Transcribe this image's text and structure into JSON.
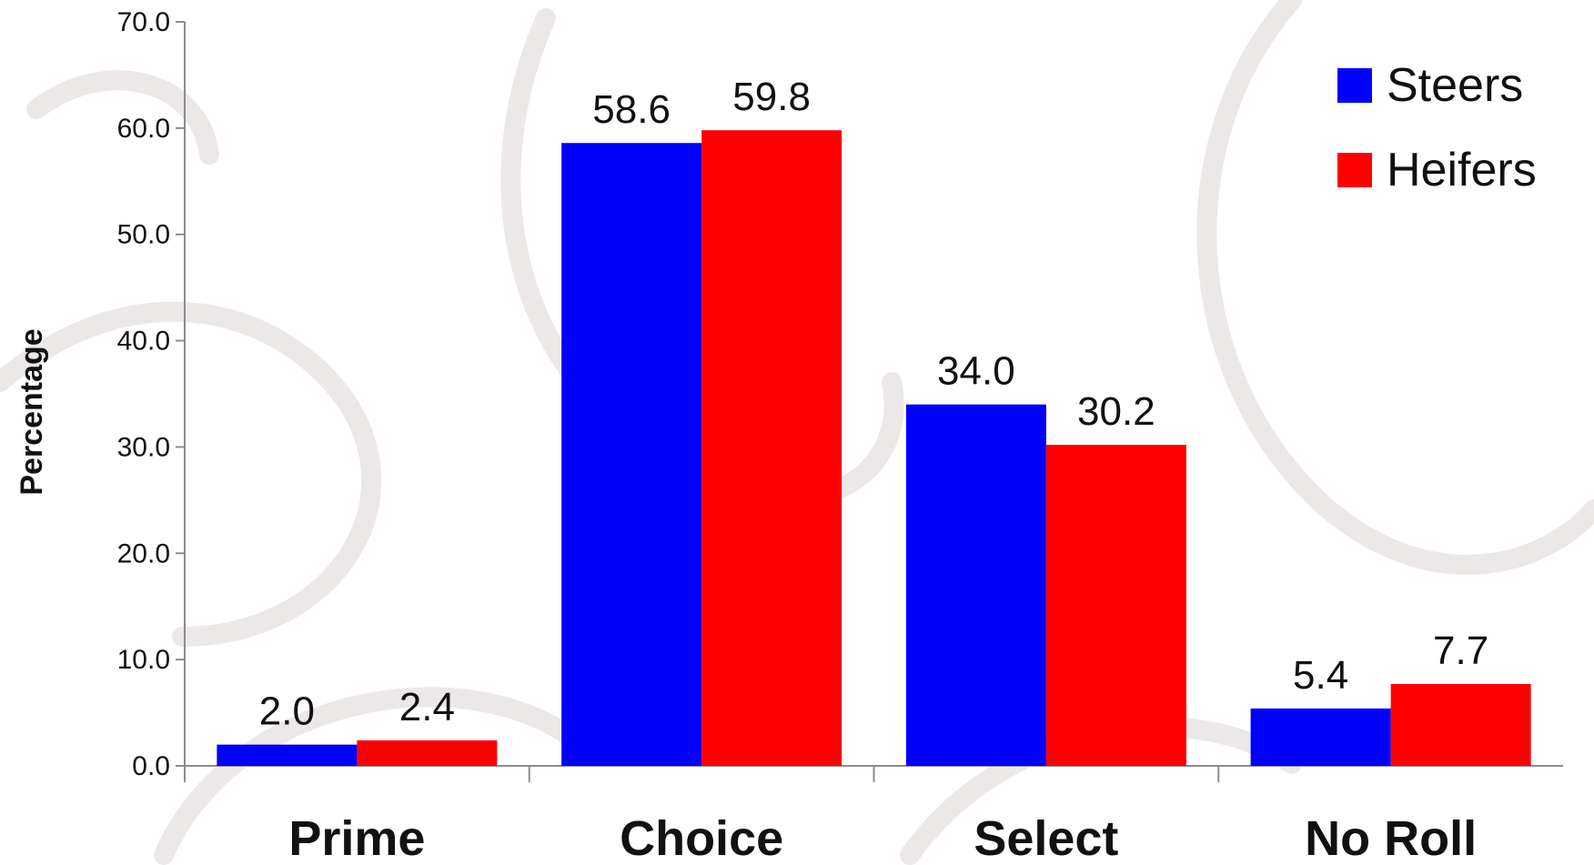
{
  "chart_data": {
    "type": "bar",
    "title": "",
    "xlabel": "",
    "ylabel": "Percentage",
    "categories": [
      "Prime",
      "Choice",
      "Select",
      "No Roll"
    ],
    "series": [
      {
        "name": "Steers",
        "color": "#0000ff",
        "values": [
          2.0,
          58.6,
          34.0,
          5.4
        ],
        "labels": [
          "2.0",
          "58.6",
          "34.0",
          "5.4"
        ]
      },
      {
        "name": "Heifers",
        "color": "#ff0000",
        "values": [
          2.4,
          59.8,
          30.2,
          7.7
        ],
        "labels": [
          "2.4",
          "59.8",
          "30.2",
          "7.7"
        ]
      }
    ],
    "ylim": [
      0,
      70
    ],
    "yticks": [
      0,
      10,
      20,
      30,
      40,
      50,
      60,
      70
    ],
    "ytick_labels": [
      "0.0",
      "10.0",
      "20.0",
      "30.0",
      "40.0",
      "50.0",
      "60.0",
      "70.0"
    ],
    "grid": false,
    "legend_position": "top-right"
  }
}
